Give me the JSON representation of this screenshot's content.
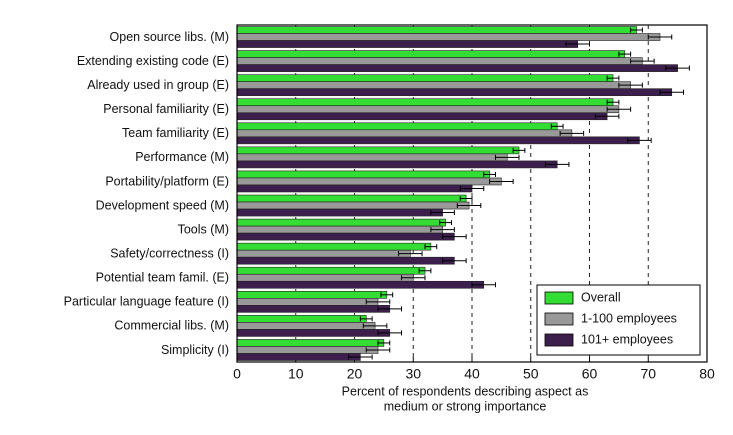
{
  "chart_data": {
    "type": "bar",
    "orientation": "horizontal",
    "xlabel": [
      "Percent of respondents describing aspect as",
      "medium or strong importance"
    ],
    "categories": [
      "Open source libs. (M)",
      "Extending existing code (E)",
      "Already used in group (E)",
      "Personal familiarity (E)",
      "Team familiarity (E)",
      "Performance (M)",
      "Portability/platform (E)",
      "Development speed (M)",
      "Tools (M)",
      "Safety/correctness (I)",
      "Potential team famil. (E)",
      "Particular language feature (I)",
      "Commercial libs. (M)",
      "Simplicity (I)"
    ],
    "series": [
      {
        "name": "Overall",
        "color": "#33dd33",
        "values": [
          68,
          66,
          64,
          64,
          54.5,
          48,
          43,
          39,
          35.5,
          33,
          32,
          25.5,
          22,
          25
        ],
        "error": [
          1,
          1,
          1,
          1,
          1,
          1,
          1,
          1,
          1,
          1,
          1,
          1,
          1,
          1
        ]
      },
      {
        "name": "1-100 employees",
        "color": "#999999",
        "values": [
          72,
          69,
          67,
          65,
          57,
          46,
          45,
          39.5,
          35,
          29.5,
          30,
          24,
          23.5,
          24
        ],
        "error": [
          2,
          2,
          2,
          2,
          2,
          2,
          2,
          2,
          2,
          2,
          2,
          2,
          2,
          2
        ]
      },
      {
        "name": "101+ employees",
        "color": "#3d1f4d",
        "values": [
          58,
          75,
          74,
          63,
          68.5,
          54.5,
          40,
          35,
          37,
          37,
          42,
          26,
          26,
          21
        ],
        "error": [
          2,
          2,
          2,
          2,
          2,
          2,
          2,
          2,
          2,
          2,
          2,
          2,
          2,
          2
        ]
      }
    ],
    "xlim": [
      0,
      80
    ],
    "xticks": [
      0,
      10,
      20,
      30,
      40,
      50,
      60,
      70,
      80
    ],
    "grid": true,
    "legend": "lower right"
  }
}
